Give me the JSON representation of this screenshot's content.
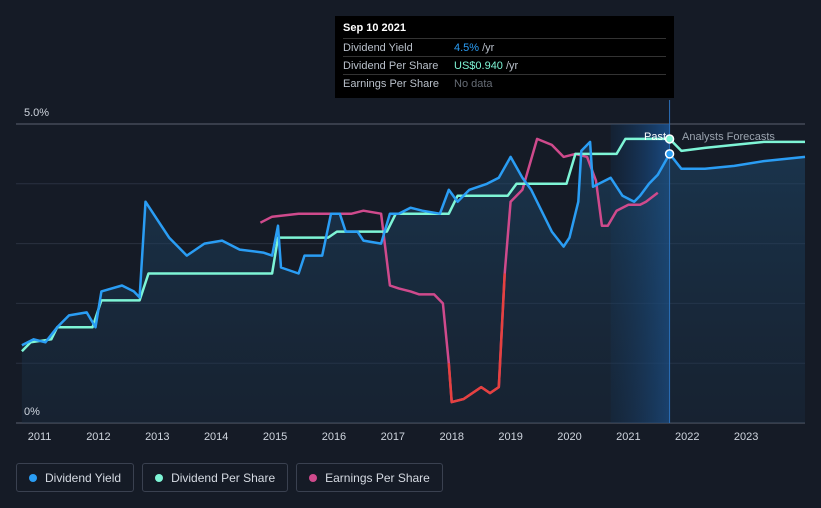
{
  "tooltip": {
    "date": "Sep 10 2021",
    "rows": [
      {
        "label": "Dividend Yield",
        "value": "4.5%",
        "unit": "/yr"
      },
      {
        "label": "Dividend Per Share",
        "value": "US$0.940",
        "unit": "/yr"
      },
      {
        "label": "Earnings Per Share",
        "value": "No data",
        "unit": ""
      }
    ]
  },
  "labels": {
    "past": "Past",
    "forecast": "Analysts Forecasts"
  },
  "legend": [
    {
      "label": "Dividend Yield",
      "color": "#2a9df4"
    },
    {
      "label": "Dividend Per Share",
      "color": "#7ef5d6"
    },
    {
      "label": "Earnings Per Share",
      "color": "#cf4a8c"
    }
  ],
  "chart_data": {
    "type": "line",
    "x_ticks": [
      "2011",
      "2012",
      "2013",
      "2014",
      "2015",
      "2016",
      "2017",
      "2018",
      "2019",
      "2020",
      "2021",
      "2022",
      "2023"
    ],
    "y_ticks": [
      "0%",
      "5.0%"
    ],
    "xlim": [
      2010.6,
      2024.0
    ],
    "ylim": [
      0,
      5.0
    ],
    "cursor_x": 2021.7,
    "forecast_from": 2020.7,
    "series": [
      {
        "name": "Dividend Yield",
        "color": "#2a9df4",
        "points": [
          [
            2010.7,
            1.3
          ],
          [
            2010.9,
            1.4
          ],
          [
            2011.1,
            1.35
          ],
          [
            2011.3,
            1.6
          ],
          [
            2011.5,
            1.8
          ],
          [
            2011.8,
            1.85
          ],
          [
            2011.95,
            1.6
          ],
          [
            2012.05,
            2.2
          ],
          [
            2012.4,
            2.3
          ],
          [
            2012.6,
            2.2
          ],
          [
            2012.7,
            2.1
          ],
          [
            2012.8,
            3.7
          ],
          [
            2013.0,
            3.4
          ],
          [
            2013.2,
            3.1
          ],
          [
            2013.5,
            2.8
          ],
          [
            2013.8,
            3.0
          ],
          [
            2014.1,
            3.05
          ],
          [
            2014.4,
            2.9
          ],
          [
            2014.8,
            2.85
          ],
          [
            2014.95,
            2.8
          ],
          [
            2015.05,
            3.3
          ],
          [
            2015.1,
            2.6
          ],
          [
            2015.4,
            2.5
          ],
          [
            2015.5,
            2.8
          ],
          [
            2015.8,
            2.8
          ],
          [
            2015.95,
            3.5
          ],
          [
            2016.1,
            3.5
          ],
          [
            2016.2,
            3.2
          ],
          [
            2016.4,
            3.2
          ],
          [
            2016.5,
            3.05
          ],
          [
            2016.8,
            3.0
          ],
          [
            2016.95,
            3.5
          ],
          [
            2017.1,
            3.5
          ],
          [
            2017.3,
            3.6
          ],
          [
            2017.5,
            3.55
          ],
          [
            2017.8,
            3.5
          ],
          [
            2017.95,
            3.9
          ],
          [
            2018.1,
            3.7
          ],
          [
            2018.3,
            3.9
          ],
          [
            2018.6,
            4.0
          ],
          [
            2018.8,
            4.1
          ],
          [
            2019.0,
            4.45
          ],
          [
            2019.2,
            4.1
          ],
          [
            2019.35,
            3.9
          ],
          [
            2019.5,
            3.6
          ],
          [
            2019.7,
            3.2
          ],
          [
            2019.9,
            2.95
          ],
          [
            2020.0,
            3.1
          ],
          [
            2020.15,
            3.7
          ],
          [
            2020.2,
            4.55
          ],
          [
            2020.35,
            4.7
          ],
          [
            2020.4,
            3.95
          ],
          [
            2020.7,
            4.1
          ],
          [
            2020.9,
            3.8
          ],
          [
            2021.1,
            3.7
          ],
          [
            2021.2,
            3.8
          ],
          [
            2021.35,
            4.0
          ],
          [
            2021.5,
            4.15
          ],
          [
            2021.7,
            4.5
          ],
          [
            2021.9,
            4.25
          ],
          [
            2022.3,
            4.25
          ],
          [
            2022.8,
            4.3
          ],
          [
            2023.3,
            4.38
          ],
          [
            2024.0,
            4.45
          ]
        ]
      },
      {
        "name": "Dividend Per Share",
        "color": "#7ef5d6",
        "points": [
          [
            2010.7,
            1.2
          ],
          [
            2010.85,
            1.35
          ],
          [
            2011.2,
            1.4
          ],
          [
            2011.3,
            1.6
          ],
          [
            2011.9,
            1.6
          ],
          [
            2012.05,
            2.05
          ],
          [
            2012.7,
            2.05
          ],
          [
            2012.85,
            2.5
          ],
          [
            2014.95,
            2.5
          ],
          [
            2015.05,
            3.1
          ],
          [
            2015.9,
            3.1
          ],
          [
            2016.05,
            3.2
          ],
          [
            2016.9,
            3.2
          ],
          [
            2017.05,
            3.5
          ],
          [
            2017.95,
            3.5
          ],
          [
            2018.1,
            3.8
          ],
          [
            2018.95,
            3.8
          ],
          [
            2019.1,
            4.0
          ],
          [
            2019.95,
            4.0
          ],
          [
            2020.1,
            4.5
          ],
          [
            2020.8,
            4.5
          ],
          [
            2020.95,
            4.75
          ],
          [
            2021.7,
            4.75
          ],
          [
            2021.9,
            4.55
          ],
          [
            2022.3,
            4.6
          ],
          [
            2022.8,
            4.65
          ],
          [
            2023.3,
            4.7
          ],
          [
            2024.0,
            4.7
          ]
        ]
      },
      {
        "name": "Earnings Per Share",
        "color": "#cf4a8c",
        "points": [
          [
            2014.75,
            3.35
          ],
          [
            2014.95,
            3.45
          ],
          [
            2015.4,
            3.5
          ],
          [
            2016.3,
            3.5
          ],
          [
            2016.5,
            3.55
          ],
          [
            2016.8,
            3.5
          ],
          [
            2016.95,
            2.3
          ],
          [
            2017.1,
            2.25
          ],
          [
            2017.3,
            2.2
          ],
          [
            2017.45,
            2.15
          ],
          [
            2017.7,
            2.15
          ],
          [
            2017.85,
            2.0
          ],
          [
            2017.95,
            1.0
          ],
          [
            2018.0,
            0.35
          ],
          [
            2018.2,
            0.4
          ],
          [
            2018.5,
            0.6
          ],
          [
            2018.65,
            0.5
          ],
          [
            2018.8,
            0.6
          ],
          [
            2018.9,
            2.5
          ],
          [
            2019.0,
            3.7
          ],
          [
            2019.1,
            3.8
          ],
          [
            2019.2,
            3.9
          ],
          [
            2019.45,
            4.75
          ],
          [
            2019.7,
            4.65
          ],
          [
            2019.9,
            4.45
          ],
          [
            2020.1,
            4.5
          ],
          [
            2020.3,
            4.45
          ],
          [
            2020.45,
            4.05
          ],
          [
            2020.55,
            3.3
          ],
          [
            2020.65,
            3.3
          ],
          [
            2020.8,
            3.55
          ],
          [
            2021.0,
            3.65
          ],
          [
            2021.2,
            3.65
          ],
          [
            2021.3,
            3.7
          ],
          [
            2021.5,
            3.85
          ]
        ]
      }
    ]
  }
}
